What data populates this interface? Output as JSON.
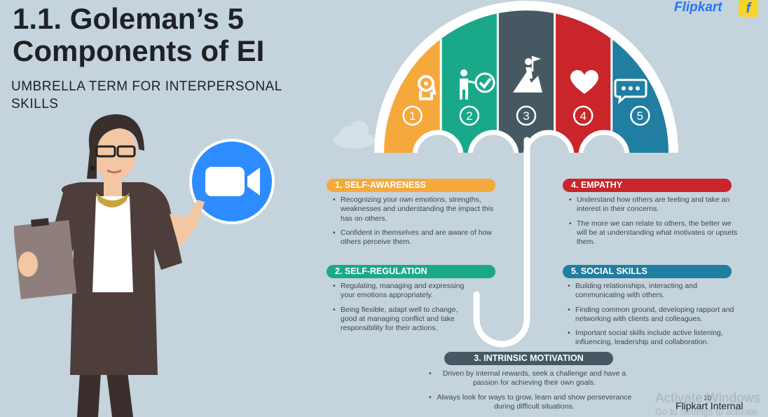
{
  "title_lines": [
    "1.1. Goleman’s 5",
    "Components of EI"
  ],
  "subtitle": "UMBRELLA TERM FOR INTERPERSONAL SKILLS",
  "brand": {
    "name": "Flipkart",
    "color": "#2874f0",
    "icon": "flipkart-bag-icon"
  },
  "umbrella": {
    "segments": [
      {
        "number": "1",
        "color": "#f5a93d",
        "icon": "head-gear-icon"
      },
      {
        "number": "2",
        "color": "#19a98a",
        "icon": "person-checkmark-icon"
      },
      {
        "number": "3",
        "color": "#465962",
        "icon": "mountain-flag-icon"
      },
      {
        "number": "4",
        "color": "#c9252b",
        "icon": "heart-icon"
      },
      {
        "number": "5",
        "color": "#1f7ea1",
        "icon": "speech-bubble-icon"
      }
    ]
  },
  "components": {
    "self_awareness": {
      "title": "1. SELF-AWARENESS",
      "color": "#f5a93d",
      "bullets": [
        "Recognizing your own emotions, strengths, weaknesses and understanding the impact this has on others.",
        "Confident in themselves and are aware of how others perceive them."
      ]
    },
    "self_regulation": {
      "title": "2. SELF-REGULATION",
      "color": "#19a98a",
      "bullets": [
        "Regulating, managing and expressing your emotions appropriately.",
        "Being flexible, adapt well to change, good at managing conflict and take responsibility for their actions."
      ]
    },
    "intrinsic_motivation": {
      "title": "3. INTRINSIC MOTIVATION",
      "color": "#465962",
      "bullets": [
        "Driven by internal rewards, seek a challenge and have a passion for achieving their own goals.",
        "Always look for ways to grow, learn and show perseverance during difficult situations."
      ]
    },
    "empathy": {
      "title": "4. EMPATHY",
      "color": "#c9252b",
      "bullets": [
        "Understand how others are feeling and take an interest in their concerns.",
        "The more we can relate to others, the better we will be at understanding what motivates or upsets them."
      ]
    },
    "social_skills": {
      "title": "5. SOCIAL SKILLS",
      "color": "#1f7ea1",
      "bullets": [
        "Building relationships, interacting and communicating with others.",
        "Finding common ground, developing rapport and networking with clients and colleagues.",
        "Important social skills include active listening, influencing, leadership and collaboration."
      ]
    }
  },
  "zoom_badge": {
    "icon": "video-camera-icon",
    "color": "#2d8cff"
  },
  "footer": {
    "watermark_line1": "Activate Windows",
    "watermark_line2": "Go to Settings to activate",
    "internal_label": "Flipkart Internal",
    "page_number": "10"
  }
}
